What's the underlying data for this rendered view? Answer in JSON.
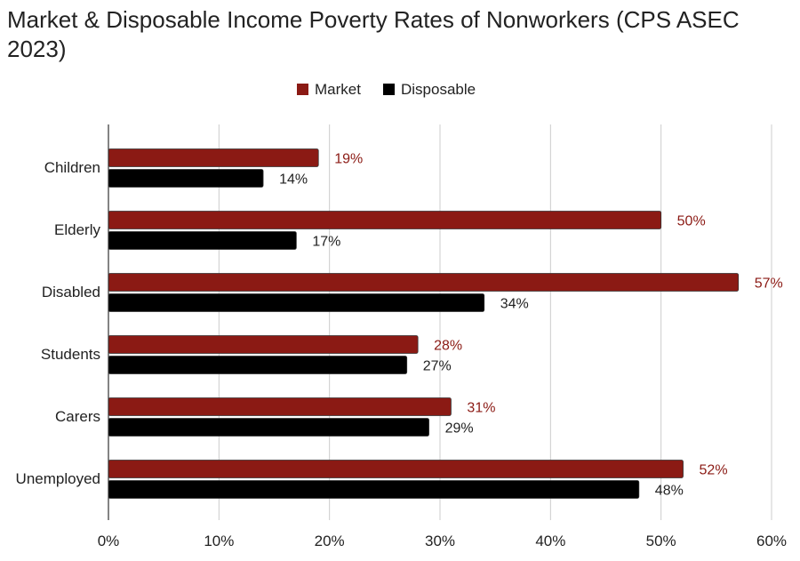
{
  "chart_data": {
    "type": "bar",
    "orientation": "horizontal",
    "title": "Market & Disposable Income Poverty Rates of Nonworkers (CPS ASEC 2023)",
    "categories": [
      "Children",
      "Elderly",
      "Disabled",
      "Students",
      "Carers",
      "Unemployed"
    ],
    "series": [
      {
        "name": "Market",
        "color": "#8b1a14",
        "values": [
          19,
          50,
          57,
          28,
          31,
          52
        ],
        "labels": [
          "19%",
          "50%",
          "57%",
          "28%",
          "31%",
          "52%"
        ]
      },
      {
        "name": "Disposable",
        "color": "#000000",
        "values": [
          14,
          17,
          34,
          27,
          29,
          48
        ],
        "labels": [
          "14%",
          "17%",
          "34%",
          "27%",
          "29%",
          "48%"
        ]
      }
    ],
    "xlim": [
      0,
      60
    ],
    "xticks": [
      0,
      10,
      20,
      30,
      40,
      50,
      60
    ],
    "xtick_labels": [
      "0%",
      "10%",
      "20%",
      "30%",
      "40%",
      "50%",
      "60%"
    ],
    "grid": true,
    "legend_position": "top"
  }
}
